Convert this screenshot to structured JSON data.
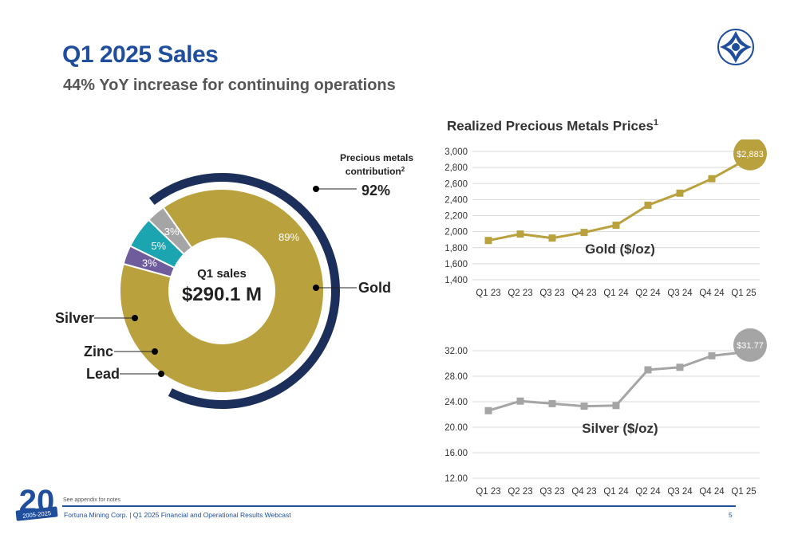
{
  "header": {
    "title": "Q1 2025 Sales",
    "subtitle": "44% YoY increase for continuing operations"
  },
  "footer": {
    "footnote": "See appendix for notes",
    "text": "Fortuna Mining Corp. | Q1 2025 Financial and Operational Results Webcast",
    "page": "5",
    "badge_number": "20",
    "badge_years": "2005-2025"
  },
  "donut": {
    "center_label": "Q1 sales",
    "center_value": "$290.1 M",
    "precious_label_line1": "Precious metals",
    "precious_label_line2": "contribution",
    "precious_sup": "2",
    "precious_value": "92%",
    "callouts": {
      "gold": "Gold",
      "silver": "Silver",
      "zinc": "Zinc",
      "lead": "Lead"
    }
  },
  "prices": {
    "title": "Realized Precious Metals Prices",
    "title_sup": "1",
    "gold_label": "Gold ($/oz)",
    "silver_label": "Silver ($/oz)",
    "gold_end_label": "$2,883",
    "silver_end_label": "$31.77"
  },
  "colors": {
    "brand_blue": "#1f4e9c",
    "navy_ring": "#1b2f5a",
    "gold": "#b9a13e",
    "silver": "#a5a5a5",
    "zinc": "#1aa5b0",
    "lead": "#6f5c9c"
  },
  "chart_data": [
    {
      "type": "pie",
      "categories": [
        "Gold",
        "Lead",
        "Zinc",
        "Silver"
      ],
      "values": [
        89,
        3,
        5,
        3
      ],
      "labels": [
        "89%",
        "3%",
        "5%",
        "3%"
      ]
    },
    {
      "type": "line",
      "categories": [
        "Q1 23",
        "Q2 23",
        "Q3 23",
        "Q4 23",
        "Q1 24",
        "Q2 24",
        "Q3 24",
        "Q4 24",
        "Q1 25"
      ],
      "series": [
        {
          "name": "Gold ($/oz)",
          "values": [
            1890,
            1970,
            1920,
            1990,
            2080,
            2330,
            2480,
            2660,
            2883
          ]
        }
      ],
      "yticks": [
        "3,000",
        "2,800",
        "2,600",
        "2,400",
        "2,200",
        "2,000",
        "1,800",
        "1,600",
        "1,400"
      ],
      "ylim": [
        1400,
        3000
      ]
    },
    {
      "type": "line",
      "categories": [
        "Q1 23",
        "Q2 23",
        "Q3 23",
        "Q4 23",
        "Q1 24",
        "Q2 24",
        "Q3 24",
        "Q4 24",
        "Q1 25"
      ],
      "series": [
        {
          "name": "Silver ($/oz)",
          "values": [
            22.6,
            24.1,
            23.7,
            23.3,
            23.4,
            29.0,
            29.4,
            31.2,
            31.77
          ]
        }
      ],
      "yticks": [
        "32.00",
        "28.00",
        "24.00",
        "20.00",
        "16.00",
        "12.00"
      ],
      "ylim": [
        12,
        32
      ]
    }
  ]
}
